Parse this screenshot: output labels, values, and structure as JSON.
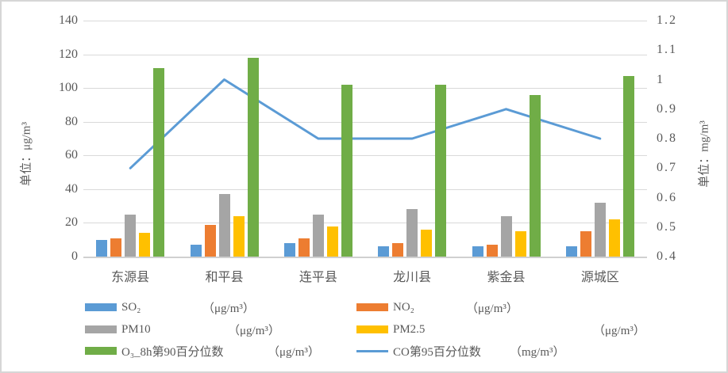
{
  "chart_data": {
    "type": "bar",
    "subtype": "grouped-bars-with-line",
    "categories": [
      "东源县",
      "和平县",
      "连平县",
      "龙川县",
      "紫金县",
      "源城区"
    ],
    "series": [
      {
        "key": "so2",
        "name": "SO₂",
        "unit": "（μg/m³）",
        "type": "bar",
        "axis": "left",
        "color": "#5B9BD5",
        "values": [
          10,
          7,
          8,
          6,
          6,
          6
        ]
      },
      {
        "key": "no2",
        "name": "NO₂",
        "unit": "（μg/m³）",
        "type": "bar",
        "axis": "left",
        "color": "#ED7D31",
        "values": [
          11,
          19,
          11,
          8,
          7,
          15
        ]
      },
      {
        "key": "pm10",
        "name": "PM10",
        "unit": "（μg/m³）",
        "type": "bar",
        "axis": "left",
        "color": "#A5A5A5",
        "values": [
          25,
          37,
          25,
          28,
          24,
          32
        ]
      },
      {
        "key": "pm25",
        "name": "PM2.5",
        "unit": "（μg/m³）",
        "type": "bar",
        "axis": "left",
        "color": "#FFC000",
        "values": [
          14,
          24,
          18,
          16,
          15,
          22
        ]
      },
      {
        "key": "o3",
        "name": "O₃_8h第90百分位数",
        "unit": "（μg/m³）",
        "type": "bar",
        "axis": "left",
        "color": "#70AD47",
        "values": [
          112,
          118,
          102,
          102,
          96,
          107
        ]
      },
      {
        "key": "co",
        "name": "CO第95百分位数",
        "unit": "（mg/m³）",
        "type": "line",
        "axis": "right",
        "color": "#5B9BD5",
        "values": [
          0.7,
          1.0,
          0.8,
          0.8,
          0.9,
          0.8
        ]
      }
    ],
    "left_axis": {
      "title": "单位：μg/m³",
      "min": 0,
      "max": 140,
      "tick_labels": [
        "140",
        "120",
        "100",
        "80",
        "60",
        "40",
        "20",
        "0"
      ]
    },
    "right_axis": {
      "title": "单位：mg/m³",
      "min": 0.4,
      "max": 1.2,
      "tick_labels": [
        "1.2",
        "1.1",
        "1",
        "0.9",
        "0.8",
        "0.7",
        "0.6",
        "0.5",
        "0.4"
      ]
    },
    "grid": true,
    "legend_position": "bottom",
    "legend_columns": 2
  }
}
